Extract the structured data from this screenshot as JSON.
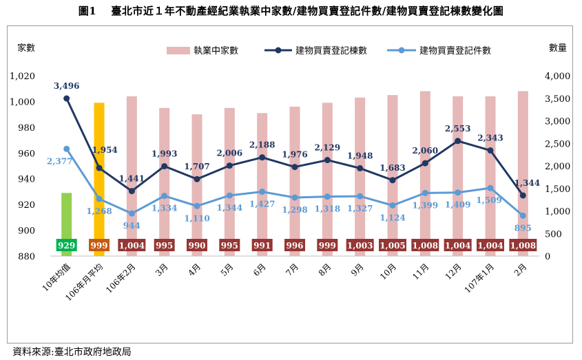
{
  "title": "圖1　 臺北市近１年不動產經紀業執業中家數/建物買賣登記件數/建物買賣登記棟數變化圖",
  "source_note": "資料來源:臺北市政府地政局",
  "colors": {
    "count_bar": "#e6b8b8",
    "avg10_bar": "#92d050",
    "avg106_bar": "#ffc000",
    "buildings_line": "#1f3864",
    "cases_line": "#5b9bd5",
    "label_box_default": "#943634",
    "label_box_avg10": "#00b050",
    "label_box_avg106": "#c55a11"
  },
  "chart_data": {
    "type": "bar+line",
    "categories": [
      "10年均值",
      "106年月平均",
      "106年2月",
      "3月",
      "4月",
      "5月",
      "6月",
      "7月",
      "8月",
      "9月",
      "10月",
      "11月",
      "12月",
      "107年1月",
      "2月"
    ],
    "left_axis": {
      "label": "家數",
      "min": 880,
      "max": 1020,
      "ticks": [
        "880",
        "900",
        "920",
        "940",
        "960",
        "980",
        "1,000",
        "1,020"
      ]
    },
    "right_axis": {
      "label": "數量",
      "min": 0,
      "max": 4000,
      "ticks": [
        "0",
        "500",
        "1,000",
        "1,500",
        "2,000",
        "2,500",
        "3,000",
        "3,500",
        "4,000"
      ]
    },
    "legend": {
      "position": "top",
      "items": [
        {
          "label": "執業中家數",
          "symbol": "bar"
        },
        {
          "label": "建物買賣登記棟數",
          "symbol": "line-dark"
        },
        {
          "label": "建物買賣登記件數",
          "symbol": "line-light"
        }
      ]
    },
    "series": [
      {
        "name": "執業中家數",
        "type": "bar",
        "axis": "left",
        "values": [
          929,
          999,
          1004,
          995,
          990,
          995,
          991,
          996,
          999,
          1003,
          1005,
          1008,
          1004,
          1004,
          1008
        ],
        "labels": [
          "929",
          "999",
          "1,004",
          "995",
          "990",
          "995",
          "991",
          "996",
          "999",
          "1,003",
          "1,005",
          "1,008",
          "1,004",
          "1,004",
          "1,008"
        ]
      },
      {
        "name": "建物買賣登記棟數",
        "type": "line",
        "axis": "right",
        "values": [
          3496,
          1954,
          1441,
          1993,
          1707,
          2006,
          2188,
          1976,
          2129,
          1948,
          1683,
          2060,
          2553,
          2343,
          1344
        ],
        "labels": [
          "3,496",
          "1,954",
          "1,441",
          "1,993",
          "1,707",
          "2,006",
          "2,188",
          "1,976",
          "2,129",
          "1,948",
          "1,683",
          "2,060",
          "2,553",
          "2,343",
          "1,344"
        ]
      },
      {
        "name": "建物買賣登記件數",
        "type": "line",
        "axis": "right",
        "values": [
          2377,
          1268,
          944,
          1334,
          1110,
          1344,
          1427,
          1298,
          1318,
          1327,
          1124,
          1399,
          1409,
          1509,
          895
        ],
        "labels": [
          "2,377",
          "1,268",
          "944",
          "1,334",
          "1,110",
          "1,344",
          "1,427",
          "1,298",
          "1,318",
          "1,327",
          "1,124",
          "1,399",
          "1,409",
          "1,509",
          "895"
        ]
      }
    ]
  }
}
